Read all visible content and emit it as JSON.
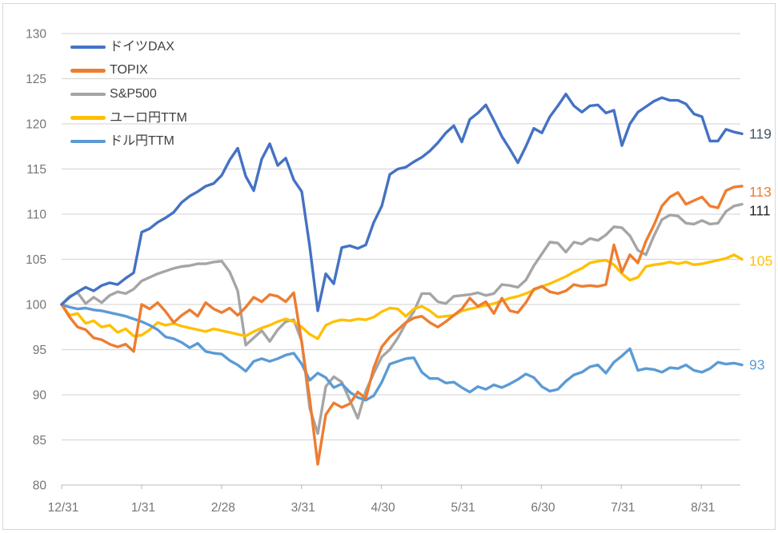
{
  "chart_data": {
    "type": "line",
    "title": "",
    "xlabel": "",
    "ylabel": "",
    "ylim": [
      80,
      130
    ],
    "y_ticks": [
      80,
      85,
      90,
      95,
      100,
      105,
      110,
      115,
      120,
      125,
      130
    ],
    "x_tick_labels": [
      "12/31",
      "1/31",
      "2/28",
      "3/31",
      "4/30",
      "5/31",
      "6/30",
      "7/31",
      "8/31"
    ],
    "points_per_month": 10,
    "grid": true,
    "legend_position": "top-left-inside",
    "series": [
      {
        "name": "ドイツDAX",
        "color": "#4472C4",
        "end_label": "119",
        "end_label_color": "#44546A",
        "values": [
          100,
          100.8,
          101.4,
          101.9,
          101.5,
          102.1,
          102.4,
          102.2,
          102.9,
          103.5,
          108.0,
          108.4,
          109.1,
          109.6,
          110.2,
          111.3,
          112.0,
          112.5,
          113.1,
          113.4,
          114.3,
          116.0,
          117.3,
          114.2,
          112.6,
          116.1,
          117.8,
          115.4,
          116.2,
          113.8,
          112.5,
          106.4,
          99.3,
          103.4,
          102.3,
          106.3,
          106.5,
          106.2,
          106.6,
          109.1,
          110.9,
          114.4,
          115.0,
          115.2,
          115.8,
          116.3,
          117.0,
          117.9,
          119.0,
          119.8,
          118.0,
          120.5,
          121.2,
          122.1,
          120.4,
          118.6,
          117.2,
          115.7,
          117.5,
          119.5,
          119.0,
          120.8,
          122.0,
          123.3,
          122.0,
          121.3,
          122.0,
          122.1,
          121.2,
          121.5,
          117.6,
          120.0,
          121.3,
          121.9,
          122.5,
          122.9,
          122.6,
          122.6,
          122.2,
          121.1,
          120.8,
          118.1,
          118.1,
          119.4,
          119.1,
          118.9
        ]
      },
      {
        "name": "TOPIX",
        "color": "#ED7D31",
        "end_label": "113",
        "end_label_color": "#ED7D31",
        "values": [
          100,
          98.6,
          97.5,
          97.2,
          96.3,
          96.1,
          95.6,
          95.3,
          95.6,
          94.8,
          100.0,
          99.5,
          100.2,
          99.2,
          98.0,
          98.8,
          99.4,
          98.7,
          100.2,
          99.5,
          99.1,
          99.6,
          98.8,
          99.7,
          100.8,
          100.3,
          101.1,
          100.9,
          100.3,
          101.3,
          95.8,
          89.5,
          82.3,
          87.8,
          89.1,
          88.6,
          89.0,
          90.3,
          89.6,
          93.0,
          95.3,
          96.4,
          97.2,
          98.0,
          98.5,
          98.7,
          98.0,
          97.5,
          98.1,
          98.8,
          99.5,
          100.7,
          99.8,
          100.3,
          99.0,
          100.7,
          99.3,
          99.1,
          100.2,
          101.7,
          102.0,
          101.4,
          101.2,
          101.5,
          102.2,
          102.0,
          102.1,
          102.0,
          102.2,
          106.6,
          103.6,
          105.5,
          104.6,
          107.0,
          108.8,
          110.9,
          111.9,
          112.4,
          111.1,
          111.5,
          111.9,
          110.9,
          110.7,
          112.6,
          113.0,
          113.1
        ]
      },
      {
        "name": "S&P500",
        "color": "#A5A5A5",
        "end_label": "111",
        "end_label_color": "#262626",
        "values": [
          100,
          100.9,
          101.3,
          100.1,
          100.8,
          100.2,
          101.0,
          101.4,
          101.2,
          101.7,
          102.6,
          103.0,
          103.4,
          103.7,
          104.0,
          104.2,
          104.3,
          104.5,
          104.5,
          104.7,
          104.8,
          103.6,
          101.5,
          95.5,
          96.3,
          97.1,
          95.9,
          97.2,
          98.1,
          98.3,
          95.9,
          88.5,
          85.7,
          90.9,
          92.0,
          91.4,
          89.4,
          87.4,
          90.4,
          92.4,
          94.2,
          95.0,
          96.3,
          97.9,
          99.2,
          101.2,
          101.2,
          100.3,
          100.1,
          100.9,
          101.0,
          101.1,
          101.3,
          101.0,
          101.2,
          102.2,
          102.1,
          101.9,
          102.7,
          104.3,
          105.6,
          106.9,
          106.8,
          105.8,
          106.9,
          106.7,
          107.3,
          107.1,
          107.7,
          108.6,
          108.5,
          107.6,
          106.0,
          105.5,
          107.6,
          109.4,
          109.9,
          109.8,
          109.0,
          108.9,
          109.3,
          108.9,
          109.0,
          110.3,
          110.9,
          111.1
        ]
      },
      {
        "name": "ユーロ円TTM",
        "color": "#FFC000",
        "end_label": "105",
        "end_label_color": "#FFC000",
        "values": [
          100,
          98.8,
          99.0,
          97.9,
          98.2,
          97.5,
          97.7,
          96.9,
          97.3,
          96.5,
          96.6,
          97.2,
          98.0,
          97.7,
          97.9,
          97.6,
          97.4,
          97.2,
          97.0,
          97.3,
          97.1,
          96.9,
          96.7,
          96.5,
          97.0,
          97.4,
          97.7,
          98.1,
          98.4,
          98.1,
          97.5,
          96.7,
          96.2,
          97.7,
          98.1,
          98.3,
          98.2,
          98.4,
          98.3,
          98.6,
          99.2,
          99.6,
          99.5,
          98.7,
          99.5,
          99.8,
          99.3,
          98.6,
          98.7,
          98.8,
          99.3,
          99.5,
          99.7,
          99.9,
          100.1,
          100.4,
          100.7,
          100.9,
          101.2,
          101.6,
          102.0,
          102.3,
          102.7,
          103.1,
          103.6,
          104.0,
          104.6,
          104.8,
          104.9,
          104.4,
          103.4,
          102.7,
          103.0,
          104.2,
          104.4,
          104.5,
          104.7,
          104.5,
          104.7,
          104.4,
          104.5,
          104.7,
          104.9,
          105.1,
          105.5,
          105.0
        ]
      },
      {
        "name": "ドル円TTM",
        "color": "#5B9BD5",
        "end_label": "93",
        "end_label_color": "#5B9BD5",
        "values": [
          100,
          99.7,
          99.5,
          99.6,
          99.4,
          99.3,
          99.1,
          98.9,
          98.7,
          98.4,
          98.1,
          97.7,
          97.2,
          96.4,
          96.2,
          95.8,
          95.2,
          95.7,
          94.8,
          94.6,
          94.5,
          93.8,
          93.3,
          92.6,
          93.7,
          94.0,
          93.7,
          94.0,
          94.4,
          94.6,
          93.4,
          91.6,
          92.4,
          91.9,
          90.8,
          91.2,
          90.3,
          89.7,
          89.4,
          89.9,
          91.4,
          93.4,
          93.7,
          94.0,
          94.1,
          92.5,
          91.8,
          91.8,
          91.3,
          91.4,
          90.8,
          90.3,
          90.9,
          90.6,
          91.1,
          90.8,
          91.2,
          91.7,
          92.3,
          91.9,
          90.9,
          90.4,
          90.6,
          91.5,
          92.2,
          92.5,
          93.1,
          93.3,
          92.4,
          93.6,
          94.3,
          95.1,
          92.7,
          92.9,
          92.8,
          92.5,
          93.0,
          92.9,
          93.3,
          92.7,
          92.5,
          92.9,
          93.6,
          93.4,
          93.5,
          93.3
        ]
      }
    ]
  }
}
